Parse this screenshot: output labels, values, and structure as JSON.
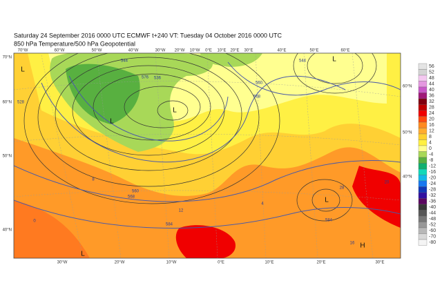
{
  "header": {
    "line1": "Saturday 24 September 2016 0000 UTC  ECMWF  t+240  VT: Tuesday 04 October 2016 0000 UTC",
    "line2": "850 hPa Temperature/500 hPa Geopotential"
  },
  "map": {
    "top_labels": [
      "70°W",
      "60°W",
      "50°W",
      "40°W",
      "30°W",
      "20°W",
      "10°W",
      "0°E",
      "10°E",
      "20°E",
      "30°E",
      "40°E",
      "50°E",
      "60°E"
    ],
    "bottom_labels": [
      "30°W",
      "20°W",
      "10°W",
      "0°E",
      "10°E",
      "20°E",
      "30°E"
    ],
    "left_labels": [
      "70°N",
      "60°N",
      "50°N",
      "40°N"
    ],
    "right_labels": [
      "60°N",
      "50°N",
      "40°N"
    ],
    "contour_labels": [
      "544",
      "536",
      "528",
      "560",
      "568",
      "576",
      "584",
      "560",
      "568",
      "544",
      "584",
      "12",
      "8",
      "4",
      "16",
      "20",
      "28",
      "0"
    ],
    "centers": [
      "L",
      "L",
      "L",
      "L",
      "L",
      "H",
      "L"
    ]
  },
  "legend": {
    "levels": [
      56,
      52,
      48,
      44,
      40,
      36,
      32,
      28,
      24,
      20,
      16,
      12,
      8,
      4,
      0,
      -4,
      -8,
      -12,
      -16,
      -20,
      -24,
      -28,
      -32,
      -36,
      -40,
      -44,
      -48,
      -52,
      -60,
      -70,
      -80
    ],
    "colors": [
      "#e4e4e4",
      "#d4d4d4",
      "#f4c8f0",
      "#e498e0",
      "#c858c8",
      "#a01878",
      "#800010",
      "#c00000",
      "#f00000",
      "#ff4a10",
      "#ff8a20",
      "#ffac30",
      "#ffd030",
      "#fff040",
      "#ffff90",
      "#a8d858",
      "#58b040",
      "#10b070",
      "#10d8b8",
      "#10b8e8",
      "#1878f0",
      "#1038b8",
      "#3010a0",
      "#5a0860",
      "#383838",
      "#585858",
      "#787878",
      "#989898",
      "#b8b8b8",
      "#d8d8d8",
      "#f4f4f4"
    ]
  }
}
